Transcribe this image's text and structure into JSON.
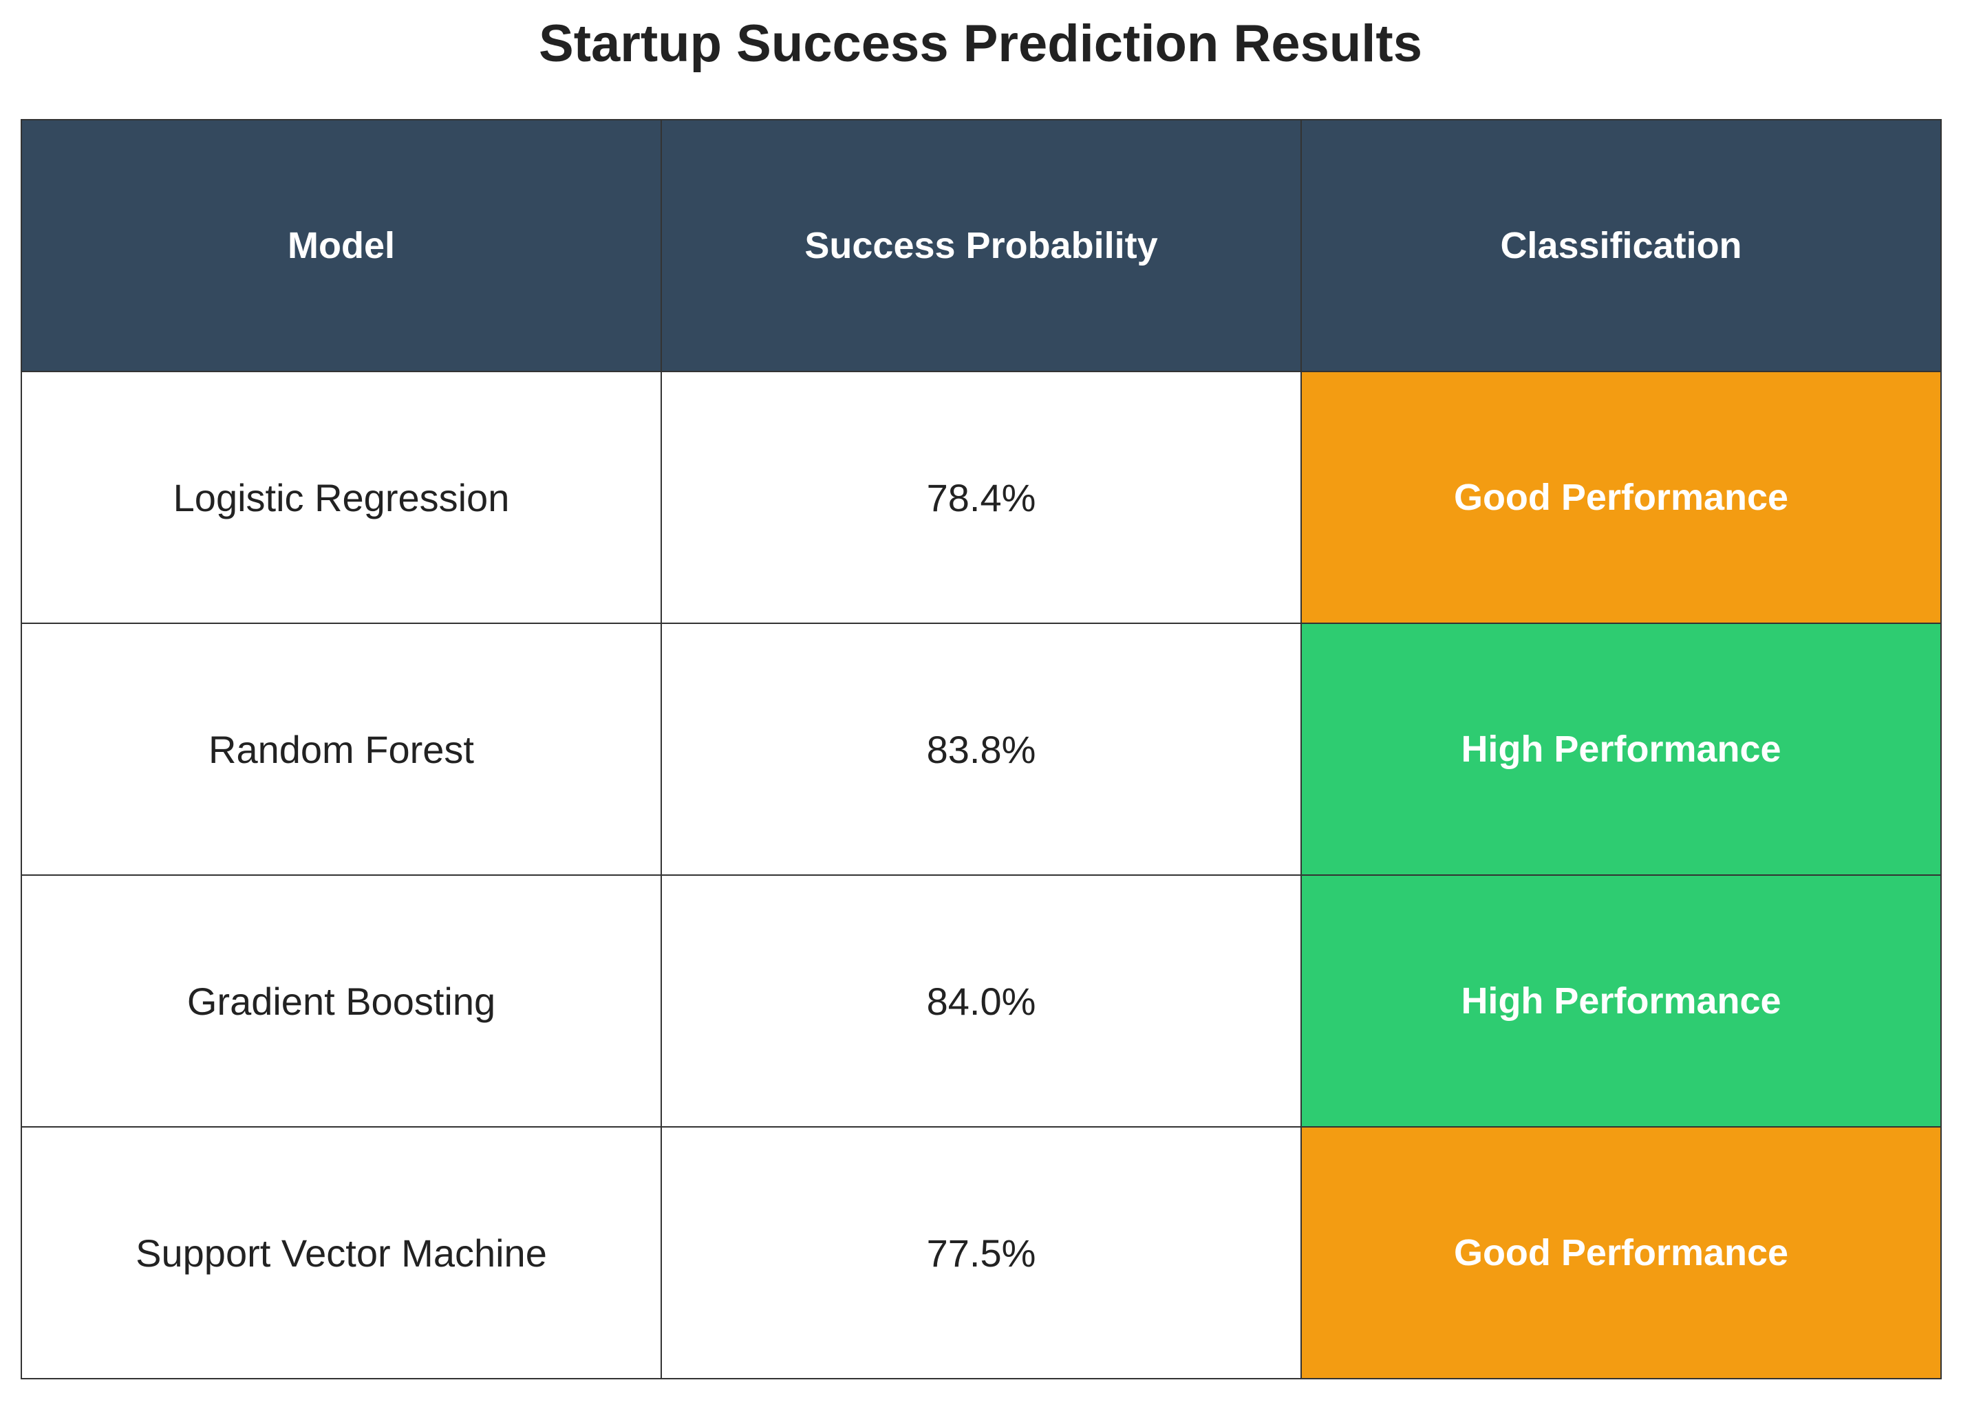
{
  "title": "Startup Success Prediction Results",
  "colors": {
    "header_bg": "#34495e",
    "good_performance": "#f39c12",
    "high_performance": "#2ecc71"
  },
  "chart_data": {
    "type": "table",
    "title": "Startup Success Prediction Results",
    "columns": [
      "Model",
      "Success Probability",
      "Classification"
    ],
    "rows": [
      {
        "model": "Logistic Regression",
        "probability": "78.4%",
        "classification": "Good Performance",
        "color": "#f39c12"
      },
      {
        "model": "Random Forest",
        "probability": "83.8%",
        "classification": "High Performance",
        "color": "#2ecc71"
      },
      {
        "model": "Gradient Boosting",
        "probability": "84.0%",
        "classification": "High Performance",
        "color": "#2ecc71"
      },
      {
        "model": "Support Vector Machine",
        "probability": "77.5%",
        "classification": "Good Performance",
        "color": "#f39c12"
      }
    ]
  }
}
